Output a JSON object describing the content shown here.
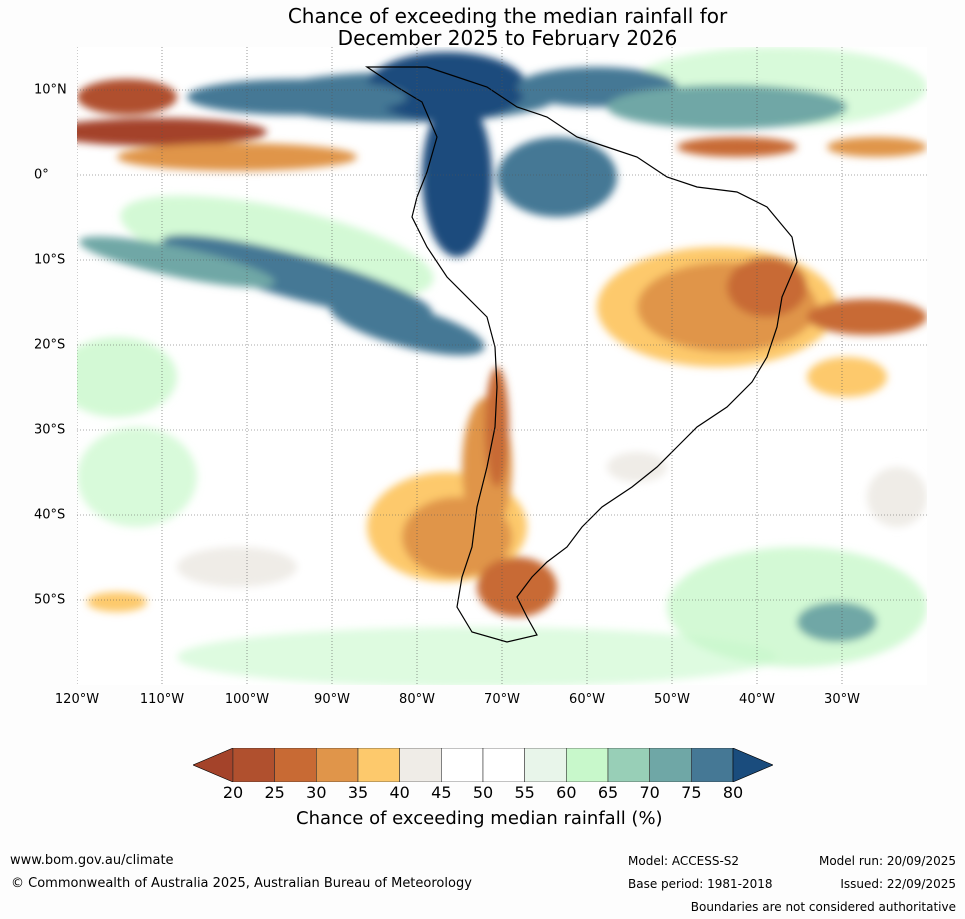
{
  "title": {
    "line1": "Chance of exceeding the median rainfall for",
    "line2": "December 2025 to February 2026"
  },
  "map": {
    "lat_labels": [
      "10°N",
      "0°",
      "10°S",
      "20°S",
      "30°S",
      "40°S",
      "50°S"
    ],
    "lon_labels": [
      "120°W",
      "110°W",
      "100°W",
      "90°W",
      "80°W",
      "70°W",
      "60°W",
      "50°W",
      "40°W",
      "30°W"
    ]
  },
  "colorbar": {
    "label": "Chance of exceeding median rainfall (%)",
    "ticks": [
      "20",
      "25",
      "30",
      "35",
      "40",
      "45",
      "50",
      "55",
      "60",
      "65",
      "70",
      "75",
      "80"
    ],
    "colors": [
      "#a4432a",
      "#b0502e",
      "#c86a34",
      "#e0954a",
      "#fdc96c",
      "#efece7",
      "#ffffff",
      "#ffffff",
      "#e8f5ea",
      "#c8f8cb",
      "#98cfb7",
      "#6fa7a6",
      "#457895",
      "#1a4c7d"
    ]
  },
  "footer": {
    "website": "www.bom.gov.au/climate",
    "copyright": "© Commonwealth of Australia 2025, Australian Bureau of Meteorology",
    "model": "Model: ACCESS-S2",
    "base_period": "Base period: 1981-2018",
    "model_run": "Model run: 20/09/2025",
    "issued": "Issued: 22/09/2025",
    "disclaimer": "Boundaries are not considered authoritative"
  }
}
